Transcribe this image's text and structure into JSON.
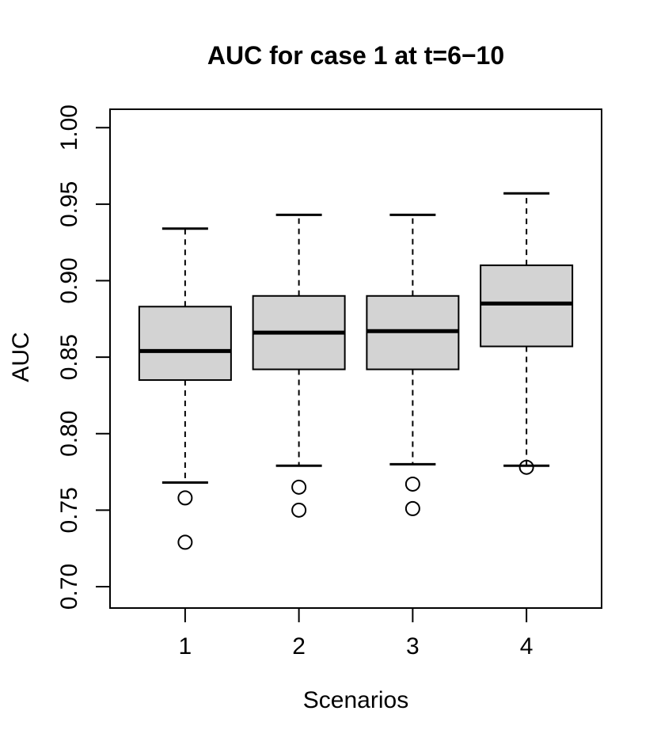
{
  "figure": {
    "background": "#ffffff",
    "foreground": "#000000",
    "box_fill": "#d3d3d3"
  },
  "chart_data": {
    "type": "boxplot",
    "title": "AUC for case 1 at t=6−10",
    "xlabel": "Scenarios",
    "ylabel": "AUC",
    "categories": [
      "1",
      "2",
      "3",
      "4"
    ],
    "x_positions": [
      1,
      2,
      3,
      4
    ],
    "xlim": [
      0.34,
      4.66
    ],
    "ylim": [
      0.686,
      1.012
    ],
    "grid": false,
    "legend": null,
    "yticks": [
      {
        "value": 0.7,
        "label": "0.70"
      },
      {
        "value": 0.75,
        "label": "0.75"
      },
      {
        "value": 0.8,
        "label": "0.80"
      },
      {
        "value": 0.85,
        "label": "0.85"
      },
      {
        "value": 0.9,
        "label": "0.90"
      },
      {
        "value": 0.95,
        "label": "0.95"
      },
      {
        "value": 1.0,
        "label": "1.00"
      }
    ],
    "series": [
      {
        "category": "1",
        "whisker_low": 0.768,
        "q1": 0.835,
        "median": 0.854,
        "q3": 0.883,
        "whisker_high": 0.934,
        "outliers": [
          0.758,
          0.729
        ]
      },
      {
        "category": "2",
        "whisker_low": 0.779,
        "q1": 0.842,
        "median": 0.866,
        "q3": 0.89,
        "whisker_high": 0.943,
        "outliers": [
          0.765,
          0.75
        ]
      },
      {
        "category": "3",
        "whisker_low": 0.78,
        "q1": 0.842,
        "median": 0.867,
        "q3": 0.89,
        "whisker_high": 0.943,
        "outliers": [
          0.767,
          0.751
        ]
      },
      {
        "category": "4",
        "whisker_low": 0.779,
        "q1": 0.857,
        "median": 0.885,
        "q3": 0.91,
        "whisker_high": 0.957,
        "outliers": [
          0.778
        ]
      }
    ]
  }
}
